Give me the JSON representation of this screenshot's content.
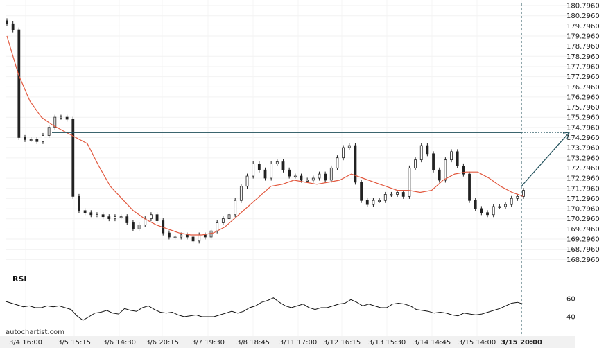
{
  "brand": "autochartist.com",
  "watermark": "",
  "chart_data": {
    "type": "candlestick",
    "y_tick_labels": [
      "180.7960",
      "180.2960",
      "179.7960",
      "179.2960",
      "178.7960",
      "178.2960",
      "177.7960",
      "177.2960",
      "176.7960",
      "176.2960",
      "175.7960",
      "175.2960",
      "174.7960",
      "174.2960",
      "173.7960",
      "173.2960",
      "172.7960",
      "172.2960",
      "171.7960",
      "171.2960",
      "170.7960",
      "170.2960",
      "169.7960",
      "169.2960",
      "168.7960",
      "168.2960"
    ],
    "ylim": [
      168.0,
      180.9
    ],
    "x_tick_labels": [
      "3/4 16:00",
      "3/5 15:15",
      "3/6 14:30",
      "3/6 20:15",
      "3/7 19:30",
      "3/8 18:45",
      "3/11 17:00",
      "3/12 16:15",
      "3/13 15:30",
      "3/14 14:45",
      "3/15 14:00",
      "3/15 20:00"
    ],
    "highlighted_x_label": "3/15 20:00",
    "resistance_level": 174.55,
    "price_close_series": [
      179.9,
      179.6,
      174.3,
      174.2,
      174.2,
      174.1,
      174.4,
      174.8,
      175.3,
      175.3,
      175.2,
      171.4,
      170.7,
      170.6,
      170.5,
      170.5,
      170.4,
      170.3,
      170.4,
      170.4,
      170.1,
      169.8,
      170.0,
      170.3,
      170.5,
      170.2,
      169.6,
      169.4,
      169.4,
      169.5,
      169.4,
      169.2,
      169.5,
      169.4,
      169.7,
      170.1,
      170.3,
      170.5,
      171.2,
      171.9,
      172.4,
      173.0,
      172.7,
      172.3,
      173.0,
      173.1,
      172.7,
      172.4,
      172.4,
      172.2,
      172.2,
      172.3,
      172.5,
      172.2,
      172.8,
      173.3,
      173.8,
      173.9,
      172.1,
      171.2,
      171.0,
      171.2,
      171.2,
      171.5,
      171.5,
      171.6,
      171.4,
      172.8,
      173.2,
      173.9,
      173.5,
      172.7,
      172.2,
      173.2,
      173.6,
      172.9,
      172.5,
      171.2,
      170.8,
      170.6,
      170.5,
      170.9,
      170.9,
      171.0,
      171.3,
      171.4,
      171.7
    ],
    "moving_average": [
      179.3,
      177.4,
      176.1,
      175.3,
      174.9,
      174.6,
      174.3,
      174.0,
      172.9,
      171.9,
      171.3,
      170.7,
      170.3,
      170.0,
      169.8,
      169.6,
      169.5,
      169.5,
      169.6,
      169.9,
      170.4,
      170.9,
      171.4,
      171.9,
      172.0,
      172.2,
      172.1,
      172.0,
      172.1,
      172.2,
      172.5,
      172.3,
      172.1,
      171.9,
      171.7,
      171.7,
      171.6,
      171.7,
      172.2,
      172.5,
      172.6,
      172.6,
      172.3,
      171.9,
      171.6,
      171.4
    ],
    "rsi": {
      "label": "RSI",
      "y_tick_labels": [
        "60",
        "40"
      ],
      "ylim": [
        30,
        70
      ],
      "values": [
        57,
        55,
        53,
        51,
        52,
        50,
        50,
        52,
        51,
        52,
        50,
        48,
        41,
        36,
        40,
        44,
        45,
        47,
        44,
        43,
        49,
        47,
        46,
        50,
        52,
        48,
        45,
        44,
        45,
        42,
        40,
        41,
        42,
        40,
        40,
        40,
        42,
        44,
        46,
        44,
        46,
        50,
        52,
        56,
        58,
        61,
        56,
        52,
        50,
        52,
        54,
        50,
        48,
        50,
        50,
        52,
        54,
        55,
        59,
        56,
        52,
        54,
        52,
        50,
        50,
        54,
        55,
        54,
        52,
        48,
        47,
        46,
        44,
        45,
        44,
        42,
        41,
        44,
        43,
        42,
        43,
        45,
        47,
        49,
        52,
        55,
        56,
        54
      ]
    }
  }
}
